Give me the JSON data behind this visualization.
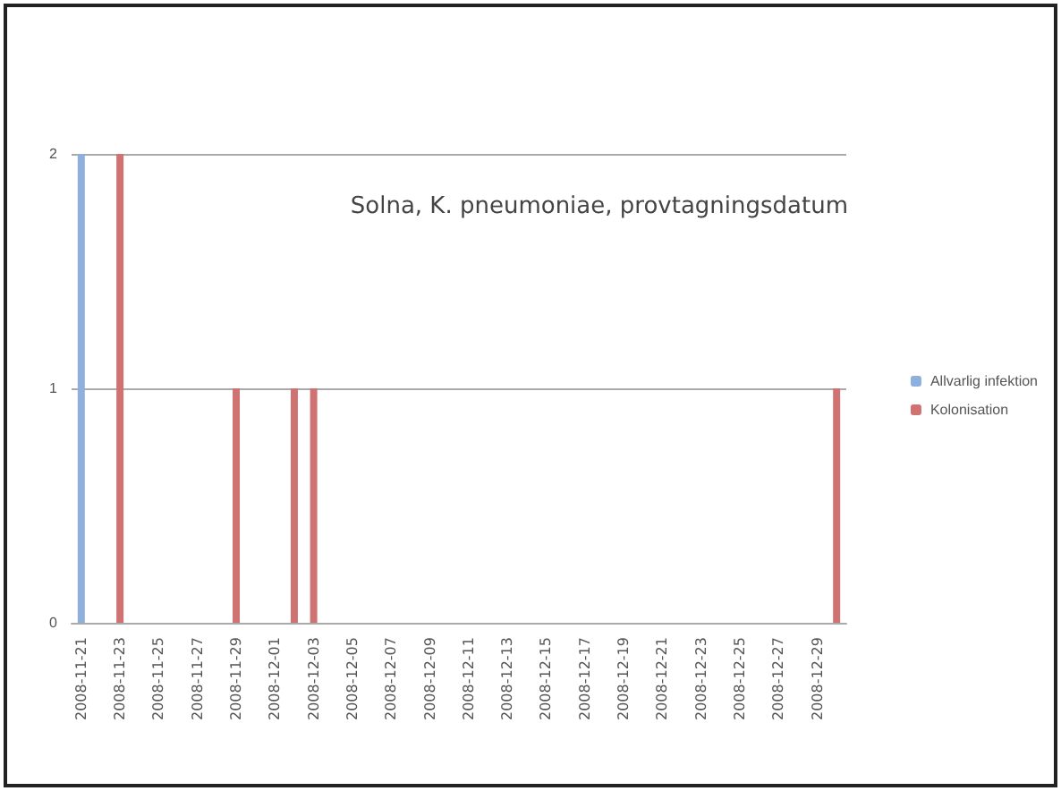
{
  "chart_data": {
    "type": "bar",
    "title": "Solna, K. pneumoniae, provtagningsdatum",
    "categories": [
      "2008-11-21",
      null,
      "2008-11-23",
      null,
      "2008-11-25",
      null,
      "2008-11-27",
      null,
      "2008-11-29",
      null,
      "2008-12-01",
      null,
      "2008-12-03",
      null,
      "2008-12-05",
      null,
      "2008-12-07",
      null,
      "2008-12-09",
      null,
      "2008-12-11",
      null,
      "2008-12-13",
      null,
      "2008-12-15",
      null,
      "2008-12-17",
      null,
      "2008-12-19",
      null,
      "2008-12-21",
      null,
      "2008-12-23",
      null,
      "2008-12-25",
      null,
      "2008-12-27",
      null,
      "2008-12-29",
      null
    ],
    "series": [
      {
        "name": "Allvarlig infektion",
        "color": "#8fb0dc",
        "values": [
          2,
          0,
          0,
          0,
          0,
          0,
          0,
          0,
          0,
          0,
          0,
          0,
          0,
          0,
          0,
          0,
          0,
          0,
          0,
          0,
          0,
          0,
          0,
          0,
          0,
          0,
          0,
          0,
          0,
          0,
          0,
          0,
          0,
          0,
          0,
          0,
          0,
          0,
          0,
          0
        ]
      },
      {
        "name": "Kolonisation",
        "color": "#cf7372",
        "values": [
          0,
          0,
          2,
          0,
          0,
          0,
          0,
          0,
          1,
          0,
          0,
          1,
          1,
          0,
          0,
          0,
          0,
          0,
          0,
          0,
          0,
          0,
          0,
          0,
          0,
          0,
          0,
          0,
          0,
          0,
          0,
          0,
          0,
          0,
          0,
          0,
          0,
          0,
          0,
          1
        ]
      }
    ],
    "ylim": [
      0,
      2
    ],
    "yticks": [
      0,
      1,
      2
    ],
    "grid": "y",
    "legend": "right"
  }
}
